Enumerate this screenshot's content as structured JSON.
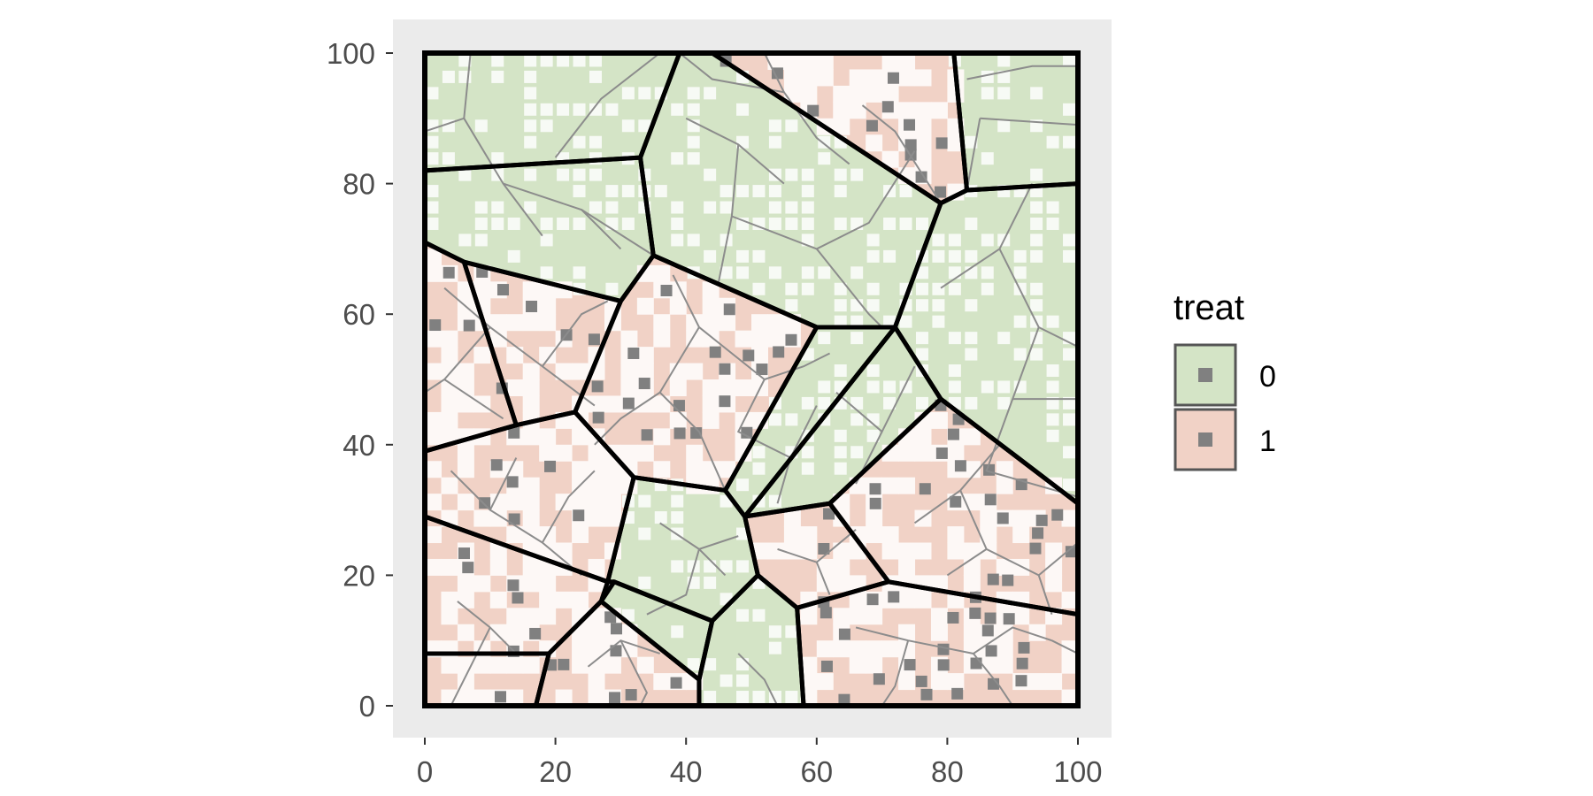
{
  "chart_data": {
    "type": "map",
    "title": "",
    "xlabel": "",
    "ylabel": "",
    "xlim": [
      0,
      100
    ],
    "ylim": [
      0,
      100
    ],
    "x_ticks": [
      "0",
      "20",
      "40",
      "60",
      "80",
      "100"
    ],
    "y_ticks": [
      "0",
      "20",
      "40",
      "60",
      "80",
      "100"
    ],
    "legend": {
      "title": "treat",
      "position": "right",
      "entries": [
        {
          "label": "0",
          "fill": "#d4e4c6"
        },
        {
          "label": "1",
          "fill": "#f1d2c6"
        }
      ]
    },
    "colors": {
      "panel_background": "#ebebeb",
      "treat_0": "#d4e4c6",
      "treat_1": "#f1d2c6",
      "cell_light": "#ffffff",
      "point_color": "#808080",
      "sub_border": "#8c8c8c",
      "cluster_border": "#000000"
    },
    "clusters": [
      {
        "treat": 0,
        "polygon": [
          [
            0,
            82
          ],
          [
            33,
            84
          ],
          [
            35,
            69
          ],
          [
            30,
            62
          ],
          [
            6,
            68
          ],
          [
            0,
            71
          ]
        ]
      },
      {
        "treat": 0,
        "polygon": [
          [
            0,
            100
          ],
          [
            39,
            100
          ],
          [
            33,
            84
          ],
          [
            0,
            82
          ]
        ]
      },
      {
        "treat": 0,
        "polygon": [
          [
            39,
            100
          ],
          [
            44,
            100
          ],
          [
            79,
            77
          ],
          [
            72,
            58
          ],
          [
            60,
            58
          ],
          [
            35,
            69
          ],
          [
            33,
            84
          ]
        ]
      },
      {
        "treat": 1,
        "polygon": [
          [
            44,
            100
          ],
          [
            81,
            100
          ],
          [
            83,
            79
          ],
          [
            79,
            77
          ]
        ]
      },
      {
        "treat": 0,
        "polygon": [
          [
            81,
            100
          ],
          [
            100,
            100
          ],
          [
            100,
            80
          ],
          [
            83,
            79
          ]
        ]
      },
      {
        "treat": 0,
        "polygon": [
          [
            79,
            77
          ],
          [
            83,
            79
          ],
          [
            100,
            80
          ],
          [
            100,
            31
          ],
          [
            79,
            47
          ],
          [
            72,
            58
          ]
        ]
      },
      {
        "treat": 1,
        "polygon": [
          [
            0,
            71
          ],
          [
            6,
            68
          ],
          [
            14,
            43
          ],
          [
            0,
            39
          ]
        ]
      },
      {
        "treat": 1,
        "polygon": [
          [
            6,
            68
          ],
          [
            30,
            62
          ],
          [
            23,
            45
          ],
          [
            14,
            43
          ]
        ]
      },
      {
        "treat": 1,
        "polygon": [
          [
            35,
            69
          ],
          [
            60,
            58
          ],
          [
            46,
            33
          ],
          [
            32,
            35
          ],
          [
            23,
            45
          ],
          [
            30,
            62
          ]
        ]
      },
      {
        "treat": 0,
        "polygon": [
          [
            60,
            58
          ],
          [
            72,
            58
          ],
          [
            49,
            29
          ],
          [
            46,
            33
          ]
        ]
      },
      {
        "treat": 0,
        "polygon": [
          [
            72,
            58
          ],
          [
            79,
            47
          ],
          [
            62,
            31
          ],
          [
            49,
            29
          ]
        ]
      },
      {
        "treat": 1,
        "polygon": [
          [
            0,
            39
          ],
          [
            14,
            43
          ],
          [
            23,
            45
          ],
          [
            32,
            35
          ],
          [
            28,
            19
          ],
          [
            0,
            29
          ]
        ]
      },
      {
        "treat": 0,
        "polygon": [
          [
            32,
            35
          ],
          [
            46,
            33
          ],
          [
            49,
            29
          ],
          [
            51,
            20
          ],
          [
            44,
            13
          ],
          [
            29,
            19
          ],
          [
            28,
            19
          ]
        ]
      },
      {
        "treat": 1,
        "polygon": [
          [
            49,
            29
          ],
          [
            62,
            31
          ],
          [
            71,
            19
          ],
          [
            57,
            15
          ],
          [
            51,
            20
          ]
        ]
      },
      {
        "treat": 1,
        "polygon": [
          [
            62,
            31
          ],
          [
            79,
            47
          ],
          [
            100,
            31
          ],
          [
            100,
            14
          ],
          [
            71,
            19
          ]
        ]
      },
      {
        "treat": 1,
        "polygon": [
          [
            0,
            29
          ],
          [
            28,
            19
          ],
          [
            27,
            16
          ],
          [
            19,
            8
          ],
          [
            0,
            8
          ]
        ]
      },
      {
        "treat": 1,
        "polygon": [
          [
            0,
            8
          ],
          [
            19,
            8
          ],
          [
            17,
            0
          ],
          [
            0,
            0
          ]
        ]
      },
      {
        "treat": 1,
        "polygon": [
          [
            19,
            8
          ],
          [
            27,
            16
          ],
          [
            42,
            4
          ],
          [
            42,
            0
          ],
          [
            17,
            0
          ]
        ]
      },
      {
        "treat": 0,
        "polygon": [
          [
            27,
            16
          ],
          [
            29,
            19
          ],
          [
            44,
            13
          ],
          [
            42,
            4
          ]
        ]
      },
      {
        "treat": 0,
        "polygon": [
          [
            44,
            13
          ],
          [
            51,
            20
          ],
          [
            57,
            15
          ],
          [
            58,
            0
          ],
          [
            42,
            0
          ],
          [
            42,
            4
          ]
        ]
      },
      {
        "treat": 1,
        "polygon": [
          [
            57,
            15
          ],
          [
            71,
            19
          ],
          [
            100,
            14
          ],
          [
            100,
            0
          ],
          [
            58,
            0
          ]
        ]
      }
    ],
    "sub_borders": [
      [
        [
          7,
          100
        ],
        [
          6,
          90
        ],
        [
          0,
          88
        ]
      ],
      [
        [
          36,
          100
        ],
        [
          27,
          93
        ],
        [
          20,
          84
        ]
      ],
      [
        [
          6,
          90
        ],
        [
          12,
          80
        ],
        [
          18,
          72
        ]
      ],
      [
        [
          12,
          80
        ],
        [
          24,
          76
        ],
        [
          30,
          70
        ]
      ],
      [
        [
          24,
          76
        ],
        [
          35,
          69
        ]
      ],
      [
        [
          39,
          100
        ],
        [
          44,
          96
        ],
        [
          55,
          94
        ],
        [
          60,
          87
        ],
        [
          65,
          83
        ]
      ],
      [
        [
          40,
          90
        ],
        [
          48,
          86
        ],
        [
          55,
          80
        ]
      ],
      [
        [
          48,
          86
        ],
        [
          47,
          75
        ],
        [
          45,
          65
        ]
      ],
      [
        [
          47,
          75
        ],
        [
          60,
          70
        ],
        [
          68,
          74
        ],
        [
          75,
          85
        ]
      ],
      [
        [
          60,
          70
        ],
        [
          68,
          60
        ],
        [
          70,
          58
        ]
      ],
      [
        [
          52,
          100
        ],
        [
          55,
          94
        ]
      ],
      [
        [
          67,
          92
        ],
        [
          72,
          88
        ],
        [
          79,
          77
        ]
      ],
      [
        [
          83,
          96
        ],
        [
          93,
          98
        ],
        [
          100,
          98
        ]
      ],
      [
        [
          85,
          90
        ],
        [
          100,
          89
        ]
      ],
      [
        [
          85,
          90
        ],
        [
          83,
          79
        ]
      ],
      [
        [
          93,
          80
        ],
        [
          88,
          70
        ],
        [
          79,
          64
        ]
      ],
      [
        [
          88,
          70
        ],
        [
          94,
          58
        ],
        [
          100,
          55
        ]
      ],
      [
        [
          94,
          58
        ],
        [
          90,
          47
        ],
        [
          100,
          47
        ]
      ],
      [
        [
          90,
          47
        ],
        [
          86,
          36
        ],
        [
          100,
          32
        ]
      ],
      [
        [
          3,
          64
        ],
        [
          10,
          58
        ],
        [
          18,
          52
        ],
        [
          26,
          46
        ]
      ],
      [
        [
          10,
          58
        ],
        [
          3,
          50
        ],
        [
          0,
          48
        ]
      ],
      [
        [
          3,
          50
        ],
        [
          12,
          44
        ]
      ],
      [
        [
          18,
          52
        ],
        [
          24,
          60
        ],
        [
          28,
          62
        ]
      ],
      [
        [
          38,
          66
        ],
        [
          42,
          58
        ],
        [
          52,
          50
        ]
      ],
      [
        [
          42,
          58
        ],
        [
          36,
          48
        ],
        [
          42,
          42
        ],
        [
          46,
          33
        ]
      ],
      [
        [
          36,
          48
        ],
        [
          30,
          44
        ],
        [
          26,
          40
        ]
      ],
      [
        [
          52,
          50
        ],
        [
          58,
          52
        ],
        [
          62,
          54
        ]
      ],
      [
        [
          52,
          50
        ],
        [
          48,
          42
        ],
        [
          56,
          38
        ]
      ],
      [
        [
          56,
          38
        ],
        [
          60,
          46
        ]
      ],
      [
        [
          56,
          38
        ],
        [
          54,
          31
        ]
      ],
      [
        [
          63,
          48
        ],
        [
          70,
          42
        ],
        [
          75,
          52
        ]
      ],
      [
        [
          70,
          42
        ],
        [
          66,
          34
        ]
      ],
      [
        [
          4,
          36
        ],
        [
          10,
          30
        ],
        [
          18,
          25
        ]
      ],
      [
        [
          10,
          30
        ],
        [
          14,
          38
        ]
      ],
      [
        [
          18,
          25
        ],
        [
          22,
          32
        ],
        [
          26,
          36
        ]
      ],
      [
        [
          18,
          25
        ],
        [
          24,
          20
        ]
      ],
      [
        [
          36,
          28
        ],
        [
          42,
          24
        ],
        [
          48,
          26
        ]
      ],
      [
        [
          42,
          24
        ],
        [
          40,
          17
        ],
        [
          34,
          14
        ]
      ],
      [
        [
          42,
          24
        ],
        [
          46,
          20
        ]
      ],
      [
        [
          54,
          24
        ],
        [
          60,
          22
        ],
        [
          66,
          27
        ]
      ],
      [
        [
          60,
          22
        ],
        [
          62,
          17
        ]
      ],
      [
        [
          75,
          28
        ],
        [
          82,
          33
        ],
        [
          88,
          40
        ]
      ],
      [
        [
          82,
          33
        ],
        [
          86,
          24
        ],
        [
          94,
          20
        ]
      ],
      [
        [
          86,
          24
        ],
        [
          80,
          20
        ]
      ],
      [
        [
          94,
          20
        ],
        [
          100,
          25
        ]
      ],
      [
        [
          94,
          20
        ],
        [
          96,
          14
        ]
      ],
      [
        [
          66,
          12
        ],
        [
          74,
          10
        ],
        [
          84,
          8
        ]
      ],
      [
        [
          74,
          10
        ],
        [
          72,
          3
        ],
        [
          70,
          0
        ]
      ],
      [
        [
          84,
          8
        ],
        [
          88,
          3
        ],
        [
          90,
          0
        ]
      ],
      [
        [
          84,
          8
        ],
        [
          90,
          12
        ],
        [
          96,
          10
        ]
      ],
      [
        [
          96,
          10
        ],
        [
          100,
          8
        ]
      ],
      [
        [
          5,
          16
        ],
        [
          10,
          12
        ],
        [
          14,
          8
        ]
      ],
      [
        [
          10,
          12
        ],
        [
          6,
          4
        ],
        [
          4,
          0
        ]
      ],
      [
        [
          25,
          6
        ],
        [
          30,
          10
        ],
        [
          36,
          8
        ]
      ],
      [
        [
          30,
          10
        ],
        [
          34,
          2
        ],
        [
          33,
          0
        ]
      ],
      [
        [
          48,
          8
        ],
        [
          52,
          4
        ],
        [
          54,
          0
        ]
      ]
    ],
    "point_density": {
      "treat_0": 0.0,
      "treat_1": 0.028
    }
  }
}
